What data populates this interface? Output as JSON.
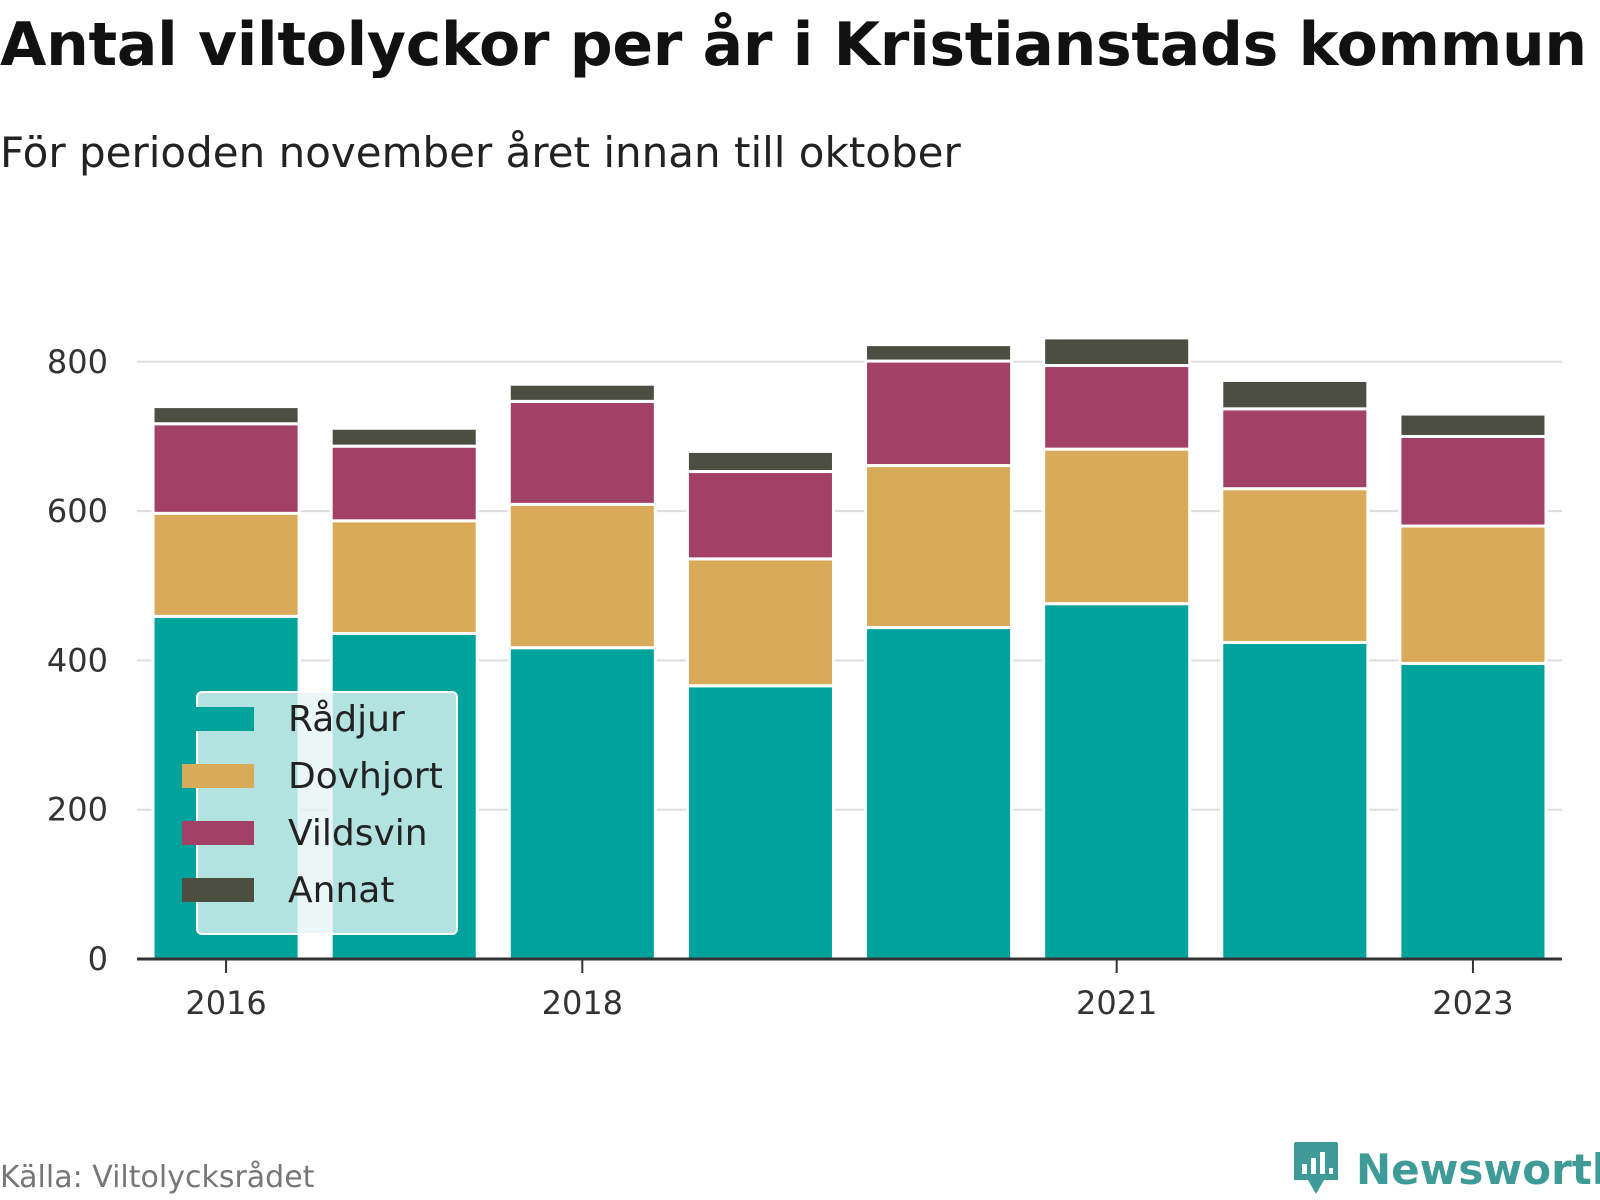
{
  "title": "Antal viltolyckor per år i Kristianstads kommun",
  "subtitle": "För perioden november året innan till oktober",
  "source": "Källa: Viltolycksrådet",
  "brand": "Newsworthy",
  "colors": {
    "Rådjur": "#00a39b",
    "Dovhjort": "#d9aa5a",
    "Vildsvin": "#a34066",
    "Annat": "#4c4e41",
    "grid": "#dddddd",
    "axis": "#333333",
    "brand": "#3f9b97"
  },
  "chart_data": {
    "type": "bar",
    "stacked": true,
    "categories": [
      "2016",
      "2017",
      "2018",
      "2019",
      "2020",
      "2021",
      "2022",
      "2023"
    ],
    "x_tick_labels": [
      "2016",
      "2018",
      "2021",
      "2023"
    ],
    "series": [
      {
        "name": "Rådjur",
        "values": [
          459,
          436,
          417,
          366,
          444,
          476,
          424,
          396
        ]
      },
      {
        "name": "Dovhjort",
        "values": [
          138,
          151,
          192,
          170,
          217,
          207,
          206,
          184
        ]
      },
      {
        "name": "Vildsvin",
        "values": [
          120,
          100,
          138,
          117,
          140,
          112,
          107,
          120
        ]
      },
      {
        "name": "Annat",
        "values": [
          23,
          24,
          23,
          27,
          22,
          37,
          38,
          30
        ]
      }
    ],
    "ylim": [
      0,
      850
    ],
    "y_ticks": [
      0,
      200,
      400,
      600,
      800
    ],
    "grid": true,
    "legend_position": "bottom-left",
    "xlabel": "",
    "ylabel": ""
  }
}
